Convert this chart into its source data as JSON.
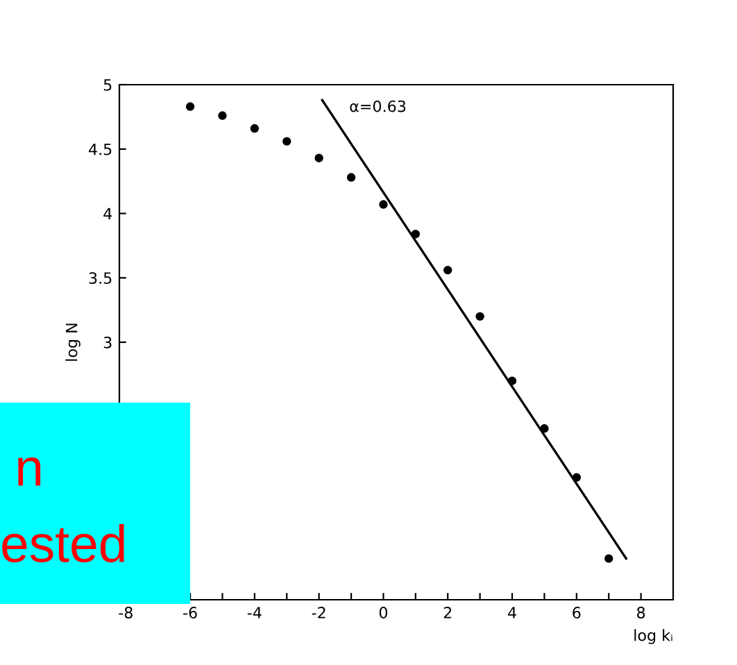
{
  "chart_data": {
    "type": "scatter",
    "xlabel": "log kᵢ",
    "ylabel": "log N",
    "x": [
      -6,
      -5,
      -4,
      -3,
      -2,
      -1,
      0,
      1,
      2,
      3,
      4,
      5,
      6,
      7
    ],
    "series": [
      {
        "color": "#000000",
        "marker": "circle",
        "values": [
          4.83,
          4.76,
          4.66,
          4.56,
          4.43,
          4.28,
          4.07,
          3.84,
          3.56,
          3.2,
          2.7,
          2.33,
          1.95,
          1.32
        ]
      },
      {
        "type": "line",
        "color": "#000000",
        "x": [
          -1.9,
          7.54
        ],
        "values": [
          4.88,
          1.32
        ]
      }
    ],
    "xlim": [
      -8.2,
      9
    ],
    "ylim": [
      1,
      5
    ],
    "xticks": [
      -8,
      {
        "value": -7,
        "label": null
      },
      -6,
      {
        "value": -5,
        "label": null
      },
      -4,
      {
        "value": -3,
        "label": null
      },
      -2,
      {
        "value": -1,
        "label": null
      },
      0,
      {
        "value": 1,
        "label": null
      },
      2,
      {
        "value": 3,
        "label": null
      },
      4,
      {
        "value": 5,
        "label": null
      },
      6,
      {
        "value": 7,
        "label": null
      },
      8
    ],
    "yticks": [
      3,
      3.5,
      4,
      4.5,
      5
    ],
    "annotations": [
      "α=0.63",
      "n",
      "ested"
    ],
    "grid": false,
    "legend": false
  }
}
